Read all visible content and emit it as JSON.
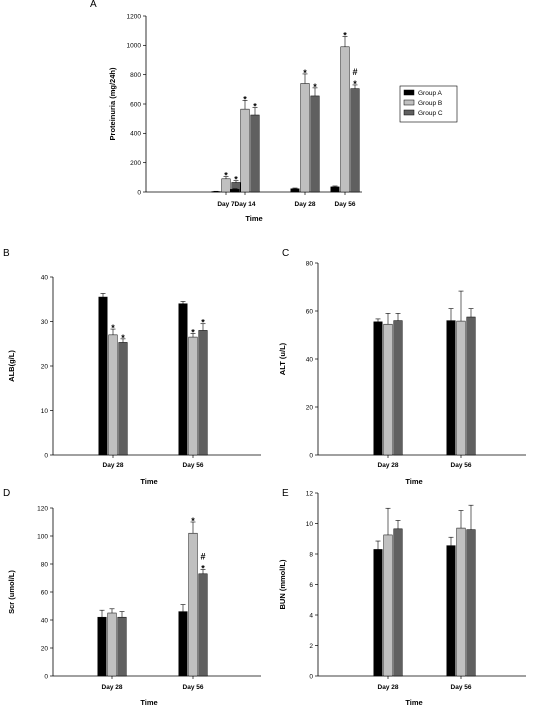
{
  "group_colors": {
    "Group A": "#000000",
    "Group B": "#c0c0c0",
    "Group C": "#606060"
  },
  "chart_data": [
    {
      "id": "A",
      "panel_label": "A",
      "type": "bar",
      "categories": [
        "Day 7",
        "Day 14",
        "Day 28",
        "Day 56"
      ],
      "series": [
        {
          "name": "Group A",
          "values": [
            3,
            18,
            22,
            35
          ],
          "errors": [
            2,
            4,
            5,
            6
          ]
        },
        {
          "name": "Group B",
          "values": [
            90,
            565,
            740,
            990
          ],
          "errors": [
            15,
            60,
            65,
            70
          ]
        },
        {
          "name": "Group C",
          "values": [
            65,
            525,
            655,
            705
          ],
          "errors": [
            12,
            50,
            55,
            25
          ]
        }
      ],
      "annotations": [
        {
          "category": "Day 7",
          "series": "Group B",
          "marks": [
            "*"
          ]
        },
        {
          "category": "Day 7",
          "series": "Group C",
          "marks": [
            "*"
          ]
        },
        {
          "category": "Day 14",
          "series": "Group B",
          "marks": [
            "*"
          ]
        },
        {
          "category": "Day 14",
          "series": "Group C",
          "marks": [
            "*"
          ]
        },
        {
          "category": "Day 28",
          "series": "Group B",
          "marks": [
            "*"
          ]
        },
        {
          "category": "Day 28",
          "series": "Group C",
          "marks": [
            "*"
          ]
        },
        {
          "category": "Day 56",
          "series": "Group B",
          "marks": [
            "*"
          ]
        },
        {
          "category": "Day 56",
          "series": "Group C",
          "marks": [
            "#",
            "*"
          ]
        }
      ],
      "xlabel": "Time",
      "ylabel": "Proteinuria (mg/24h)",
      "ylim": [
        0,
        1200
      ],
      "yticks": [
        0,
        200,
        400,
        600,
        800,
        1000,
        1200
      ],
      "legend": [
        "Group A",
        "Group B",
        "Group C"
      ],
      "legend_position": "right"
    },
    {
      "id": "B",
      "panel_label": "B",
      "type": "bar",
      "categories": [
        "Day 28",
        "Day 56"
      ],
      "series": [
        {
          "name": "Group A",
          "values": [
            35.5,
            34
          ],
          "errors": [
            0.8,
            0.5
          ]
        },
        {
          "name": "Group B",
          "values": [
            27,
            26.5
          ],
          "errors": [
            1.3,
            0.8
          ]
        },
        {
          "name": "Group C",
          "values": [
            25.3,
            28
          ],
          "errors": [
            0.8,
            1.5
          ]
        }
      ],
      "annotations": [
        {
          "category": "Day 28",
          "series": "Group B",
          "marks": [
            "*"
          ]
        },
        {
          "category": "Day 28",
          "series": "Group C",
          "marks": [
            "*"
          ]
        },
        {
          "category": "Day 56",
          "series": "Group B",
          "marks": [
            "*"
          ]
        },
        {
          "category": "Day 56",
          "series": "Group C",
          "marks": [
            "*"
          ]
        }
      ],
      "xlabel": "Time",
      "ylabel": "ALB(g/L)",
      "ylim": [
        0,
        40
      ],
      "yticks": [
        0,
        10,
        20,
        30,
        40
      ]
    },
    {
      "id": "C",
      "panel_label": "C",
      "type": "bar",
      "categories": [
        "Day 28",
        "Day 56"
      ],
      "series": [
        {
          "name": "Group A",
          "values": [
            55.5,
            56
          ],
          "errors": [
            1.2,
            5
          ]
        },
        {
          "name": "Group B",
          "values": [
            54.5,
            55.8
          ],
          "errors": [
            4.5,
            12.5
          ]
        },
        {
          "name": "Group C",
          "values": [
            56,
            57.5
          ],
          "errors": [
            3,
            3.5
          ]
        }
      ],
      "annotations": [],
      "xlabel": "Time",
      "ylabel": "ALT (u/L)",
      "ylim": [
        0,
        80
      ],
      "yticks": [
        0,
        20,
        40,
        60,
        80
      ]
    },
    {
      "id": "D",
      "panel_label": "D",
      "type": "bar",
      "categories": [
        "Day 28",
        "Day 56"
      ],
      "series": [
        {
          "name": "Group A",
          "values": [
            42,
            46
          ],
          "errors": [
            5,
            5
          ]
        },
        {
          "name": "Group B",
          "values": [
            45,
            102
          ],
          "errors": [
            3,
            8
          ]
        },
        {
          "name": "Group C",
          "values": [
            42,
            73
          ],
          "errors": [
            4,
            3
          ]
        }
      ],
      "annotations": [
        {
          "category": "Day 56",
          "series": "Group B",
          "marks": [
            "*"
          ]
        },
        {
          "category": "Day 56",
          "series": "Group C",
          "marks": [
            "#",
            "*"
          ]
        }
      ],
      "xlabel": "Time",
      "ylabel": "Scr (umol/L)",
      "ylim": [
        0,
        120
      ],
      "yticks": [
        0,
        20,
        40,
        60,
        80,
        100,
        120
      ]
    },
    {
      "id": "E",
      "panel_label": "E",
      "type": "bar",
      "categories": [
        "Day 28",
        "Day 56"
      ],
      "series": [
        {
          "name": "Group A",
          "values": [
            8.3,
            8.55
          ],
          "errors": [
            0.55,
            0.55
          ]
        },
        {
          "name": "Group B",
          "values": [
            9.25,
            9.7
          ],
          "errors": [
            1.75,
            1.15
          ]
        },
        {
          "name": "Group C",
          "values": [
            9.65,
            9.6
          ],
          "errors": [
            0.55,
            1.6
          ]
        }
      ],
      "annotations": [],
      "xlabel": "Time",
      "ylabel": "BUN (mmol/L)",
      "ylim": [
        0,
        12
      ],
      "yticks": [
        0,
        2,
        4,
        6,
        8,
        10,
        12
      ]
    }
  ]
}
